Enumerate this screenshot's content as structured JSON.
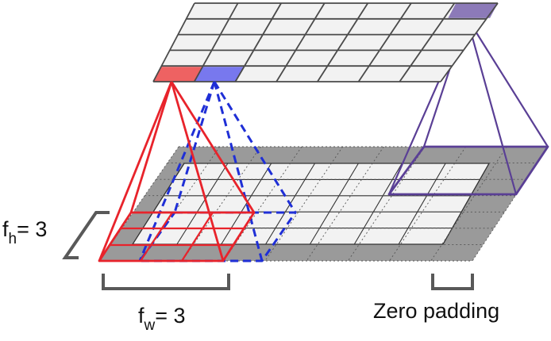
{
  "labels": {
    "fh": {
      "main": "f",
      "sub": "h",
      "rest": "= 3"
    },
    "fw": {
      "main": "f",
      "sub": "w",
      "rest": "= 3"
    },
    "zero_padding": "Zero padding"
  },
  "grid": {
    "top_layer": {
      "rows": 5,
      "cols": 7
    },
    "bottom_layer": {
      "rows": 7,
      "cols": 9,
      "padding": 1
    }
  },
  "colors": {
    "red": "#e8232b",
    "red_cell": "#ee6262",
    "blue": "#1f2fd6",
    "blue_cell": "#7878ee",
    "purple": "#5a3f95",
    "purple_cell": "#8c7ab8",
    "grid_line": "#4a4a4a",
    "cell_fill": "#f2f2f2",
    "pad_fill": "#9a9a9a",
    "bracket": "#595959"
  }
}
